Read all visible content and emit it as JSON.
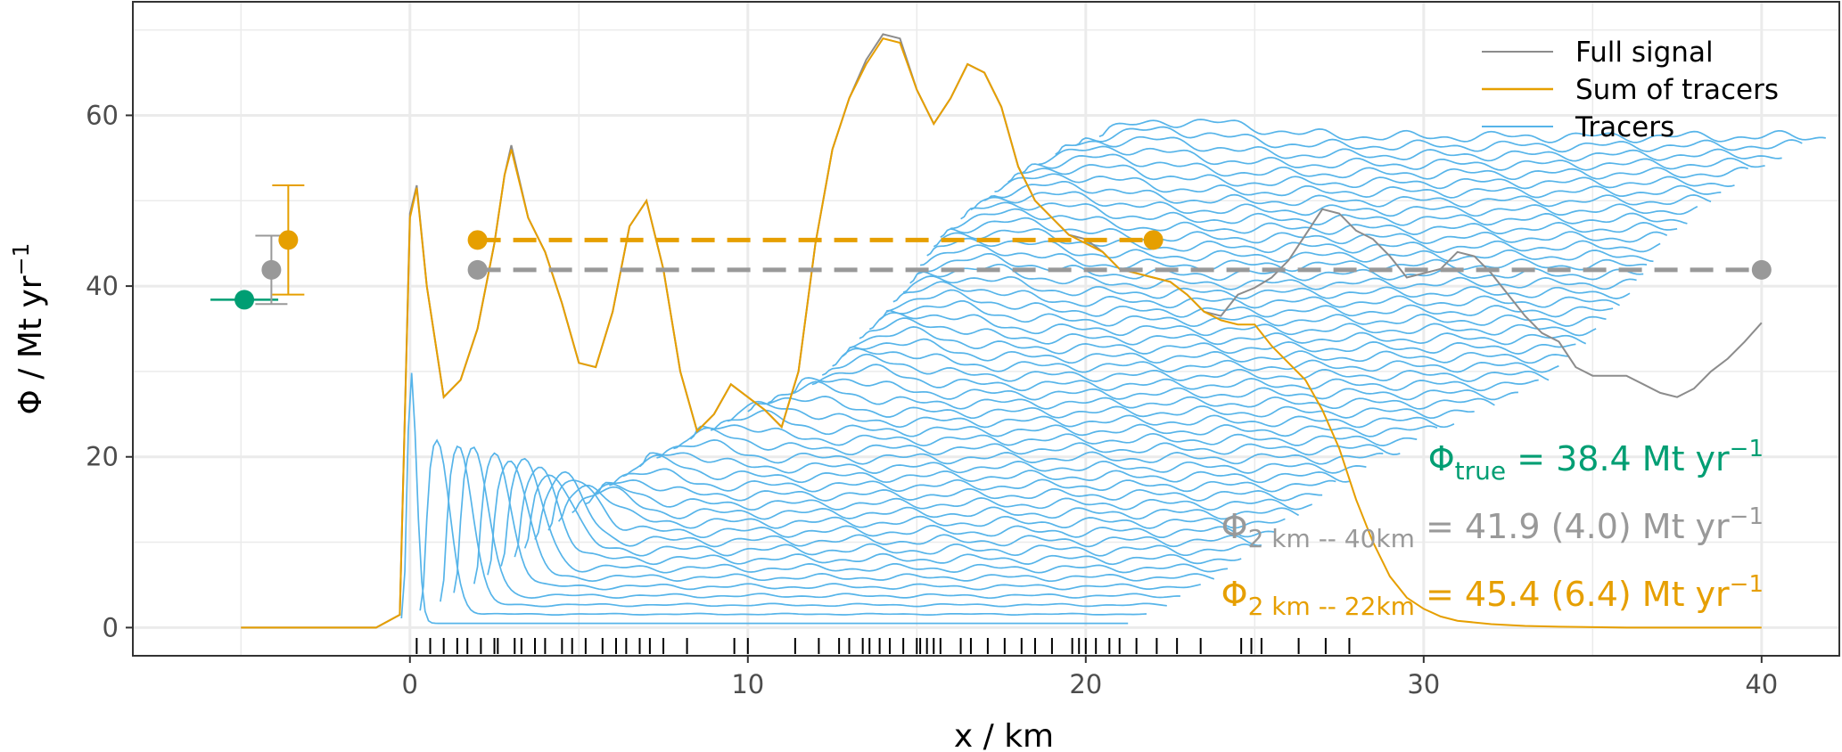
{
  "chart_data": {
    "type": "line",
    "xlabel": "x / km",
    "ylabel": "Φ  / Mt yr",
    "ylabel_sup": "−1",
    "xlim": [
      -8.2,
      42.3
    ],
    "ylim": [
      -3.3,
      73.3
    ],
    "xticks": [
      0,
      10,
      20,
      30,
      40
    ],
    "yticks": [
      0,
      20,
      40,
      60
    ],
    "grid": true,
    "legend_position": "top-right",
    "legend": [
      {
        "label": "Full signal",
        "color": "#8c8c8c"
      },
      {
        "label": "Sum of tracers",
        "color": "#E69F00"
      },
      {
        "label": "Tracers",
        "color": "#56B4E9"
      }
    ],
    "series": [
      {
        "name": "Full signal",
        "color": "#8c8c8c",
        "x": [
          -5,
          -1,
          -0.3,
          0,
          0.2,
          0.5,
          1,
          1.5,
          2,
          2.5,
          2.8,
          3,
          3.5,
          4,
          4.5,
          5,
          5.5,
          6,
          6.5,
          7,
          7.5,
          8,
          8.5,
          9,
          9.5,
          10,
          10.5,
          11,
          11.5,
          12,
          12.5,
          13,
          13.5,
          14,
          14.5,
          15,
          15.5,
          16,
          16.5,
          17,
          17.5,
          18,
          18.5,
          19,
          19.5,
          20,
          20.5,
          21,
          21.5,
          22,
          22.5,
          23,
          23.5,
          24,
          24.5,
          25,
          25.5,
          26,
          26.5,
          27,
          27.5,
          28,
          28.5,
          29,
          29.5,
          30,
          30.5,
          31,
          31.5,
          32,
          32.5,
          33,
          33.5,
          34,
          34.5,
          35,
          35.5,
          36,
          36.5,
          37,
          37.5,
          38,
          38.5,
          39,
          39.5,
          40
        ],
        "y": [
          0,
          0,
          1.5,
          48.5,
          51.8,
          40,
          27,
          29,
          35,
          45,
          53,
          56.5,
          48,
          44,
          38,
          31,
          30.5,
          37,
          47,
          50,
          42,
          30,
          23,
          25,
          28.5,
          27,
          25.5,
          23.5,
          30,
          45,
          56,
          62,
          66.5,
          69.5,
          69,
          63,
          59,
          62,
          66,
          65,
          61,
          54,
          50,
          48,
          46,
          45.5,
          44,
          42,
          41.5,
          41,
          40.5,
          39,
          37,
          36.5,
          39,
          39.8,
          41,
          43,
          46,
          49,
          48.5,
          46.5,
          45.5,
          43.5,
          41,
          41.5,
          42,
          44,
          43.5,
          41.5,
          39,
          36.5,
          34.5,
          33.5,
          30.5,
          29.5,
          29.5,
          29.5,
          28.5,
          27.5,
          27,
          28,
          30,
          31.5,
          33.5,
          35.7
        ]
      },
      {
        "name": "Sum of tracers",
        "color": "#E69F00",
        "x": [
          -5,
          -1,
          -0.3,
          0,
          0.2,
          0.5,
          1,
          1.5,
          2,
          2.5,
          2.8,
          3,
          3.5,
          4,
          4.5,
          5,
          5.5,
          6,
          6.5,
          7,
          7.5,
          8,
          8.5,
          9,
          9.5,
          10,
          10.5,
          11,
          11.5,
          12,
          12.5,
          13,
          13.5,
          14,
          14.5,
          15,
          15.5,
          16,
          16.5,
          17,
          17.5,
          18,
          18.5,
          19,
          19.5,
          20,
          20.5,
          21,
          21.5,
          22,
          22.5,
          23,
          23.5,
          24,
          24.5,
          25,
          25.5,
          26,
          26.5,
          27,
          27.5,
          28,
          28.5,
          29,
          29.5,
          30,
          30.5,
          31,
          32,
          33,
          34,
          36,
          38,
          40
        ],
        "y": [
          0,
          0,
          1.5,
          48,
          51.5,
          40,
          27,
          29,
          35,
          45,
          53,
          56,
          48,
          44,
          38,
          31,
          30.5,
          37,
          47,
          50,
          42,
          30,
          23,
          25,
          28.5,
          27,
          25.5,
          23.5,
          30,
          45,
          56,
          62,
          66,
          69,
          68.5,
          63,
          59,
          62,
          66,
          65,
          61,
          54,
          50,
          48,
          46,
          45,
          44,
          42,
          41.5,
          41,
          40.5,
          39,
          37,
          36,
          35.5,
          35.5,
          33,
          31,
          29,
          25.5,
          21,
          15,
          10,
          6,
          3.5,
          2.2,
          1.3,
          0.8,
          0.4,
          0.2,
          0.1,
          0,
          0,
          0
        ]
      }
    ],
    "tracers": {
      "color": "#56B4E9",
      "count": 54,
      "start_x": [
        -0.25,
        0.3,
        0.9,
        1.3,
        1.9,
        2.3,
        2.7,
        3.1,
        3.4,
        3.7,
        4.1,
        4.4,
        4.8,
        5.2,
        5.5,
        5.9,
        6.3,
        6.8,
        7.3,
        7.8,
        8.3,
        8.9,
        9.4,
        10.0,
        10.6,
        11.3,
        11.9,
        12.2,
        12.5,
        12.8,
        13.0,
        13.3,
        13.6,
        13.9,
        14.1,
        14.3,
        14.6,
        14.8,
        15.0,
        15.1,
        15.3,
        15.5,
        15.7,
        16.0,
        16.3,
        16.6,
        17.0,
        17.3,
        17.7,
        18.1,
        18.6,
        19.1,
        19.7,
        20.4
      ],
      "length_km": 21.5,
      "baseline_start": 0.5,
      "baseline_end": 57.5
    },
    "reference_lines": [
      {
        "name": "2 km – 40km mean",
        "color": "#999999",
        "x": [
          2,
          40
        ],
        "y": 41.9
      },
      {
        "name": "2 km – 22km mean",
        "color": "#E69F00",
        "x": [
          2,
          22
        ],
        "y": 45.4
      }
    ],
    "error_bars": [
      {
        "color": "#009E73",
        "x": -4.9,
        "y": 38.4,
        "ymin": 38.4,
        "ymax": 38.4
      },
      {
        "color": "#999999",
        "x": -4.1,
        "y": 41.9,
        "ymin": 37.9,
        "ymax": 45.9
      },
      {
        "color": "#E69F00",
        "x": -3.6,
        "y": 45.4,
        "ymin": 39.0,
        "ymax": 51.8
      }
    ],
    "rug_x": [
      0.2,
      0.6,
      1.0,
      1.4,
      1.7,
      2.1,
      2.5,
      2.6,
      3.1,
      3.3,
      3.7,
      4.0,
      4.5,
      4.8,
      5.2,
      5.7,
      6.1,
      6.4,
      6.8,
      7.1,
      7.5,
      8.2,
      9.6,
      10.0,
      11.4,
      12.1,
      12.7,
      13.0,
      13.4,
      13.6,
      13.9,
      14.2,
      14.6,
      15.0,
      15.1,
      15.3,
      15.5,
      15.7,
      16.3,
      16.6,
      17.1,
      17.6,
      18.1,
      18.5,
      19.0,
      19.6,
      19.8,
      20.0,
      20.3,
      20.7,
      21.0,
      21.5,
      22.1,
      22.7,
      23.4,
      24.6,
      24.9,
      25.2,
      26.3,
      27.1,
      27.8
    ],
    "annotations": [
      {
        "symbol": "Φ",
        "sub": "true",
        "text": " = 38.4 Mt yr",
        "sup": "−1",
        "color": "#009E73"
      },
      {
        "symbol": "Φ",
        "sub": "2 km -- 40km",
        "text": " = 41.9 (4.0) Mt yr",
        "sup": "−1",
        "color": "#999999"
      },
      {
        "symbol": "Φ",
        "sub": "2 km -- 22km",
        "text": " = 45.4 (6.4) Mt yr",
        "sup": "−1",
        "color": "#E69F00"
      }
    ]
  }
}
